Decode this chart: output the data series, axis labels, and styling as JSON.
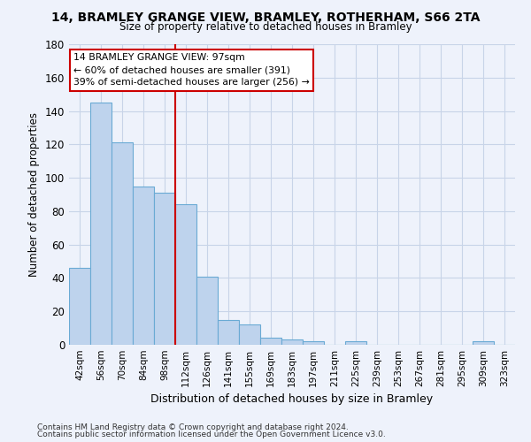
{
  "title_line1": "14, BRAMLEY GRANGE VIEW, BRAMLEY, ROTHERHAM, S66 2TA",
  "title_line2": "Size of property relative to detached houses in Bramley",
  "xlabel": "Distribution of detached houses by size in Bramley",
  "ylabel": "Number of detached properties",
  "footnote1": "Contains HM Land Registry data © Crown copyright and database right 2024.",
  "footnote2": "Contains public sector information licensed under the Open Government Licence v3.0.",
  "categories": [
    "42sqm",
    "56sqm",
    "70sqm",
    "84sqm",
    "98sqm",
    "112sqm",
    "126sqm",
    "141sqm",
    "155sqm",
    "169sqm",
    "183sqm",
    "197sqm",
    "211sqm",
    "225sqm",
    "239sqm",
    "253sqm",
    "267sqm",
    "281sqm",
    "295sqm",
    "309sqm",
    "323sqm"
  ],
  "values": [
    46,
    145,
    121,
    95,
    91,
    84,
    41,
    15,
    12,
    4,
    3,
    2,
    0,
    2,
    0,
    0,
    0,
    0,
    0,
    2,
    0
  ],
  "bar_color": "#bed3ed",
  "bar_edge_color": "#6aaad4",
  "grid_color": "#c8d4e8",
  "background_color": "#eef2fb",
  "vline_x_index": 4,
  "vline_color": "#cc0000",
  "annotation_line1": "14 BRAMLEY GRANGE VIEW: 97sqm",
  "annotation_line2": "← 60% of detached houses are smaller (391)",
  "annotation_line3": "39% of semi-detached houses are larger (256) →",
  "annotation_box_color": "#cc0000",
  "ylim": [
    0,
    180
  ],
  "yticks": [
    0,
    20,
    40,
    60,
    80,
    100,
    120,
    140,
    160,
    180
  ]
}
